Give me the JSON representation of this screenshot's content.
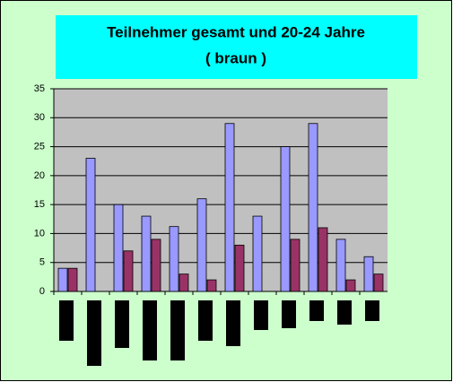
{
  "chart_data": {
    "type": "bar",
    "title": "Teilnehmer gesamt und 20-24 Jahre",
    "subtitle": "( braun )",
    "categories": [
      null,
      null,
      null,
      null,
      null,
      null,
      null,
      null,
      null,
      null,
      null,
      null
    ],
    "series": [
      {
        "color": "#9999ff",
        "values": [
          4,
          23,
          15,
          13,
          11.2,
          16,
          29,
          13,
          25,
          29,
          9,
          6
        ]
      },
      {
        "color": "#993366",
        "values": [
          4,
          null,
          7,
          9,
          3,
          2,
          8,
          null,
          9,
          11,
          2,
          3
        ]
      }
    ],
    "ylim": [
      0,
      35
    ],
    "yticks": [
      0,
      5,
      10,
      15,
      20,
      25,
      30,
      35
    ],
    "grid": true
  }
}
